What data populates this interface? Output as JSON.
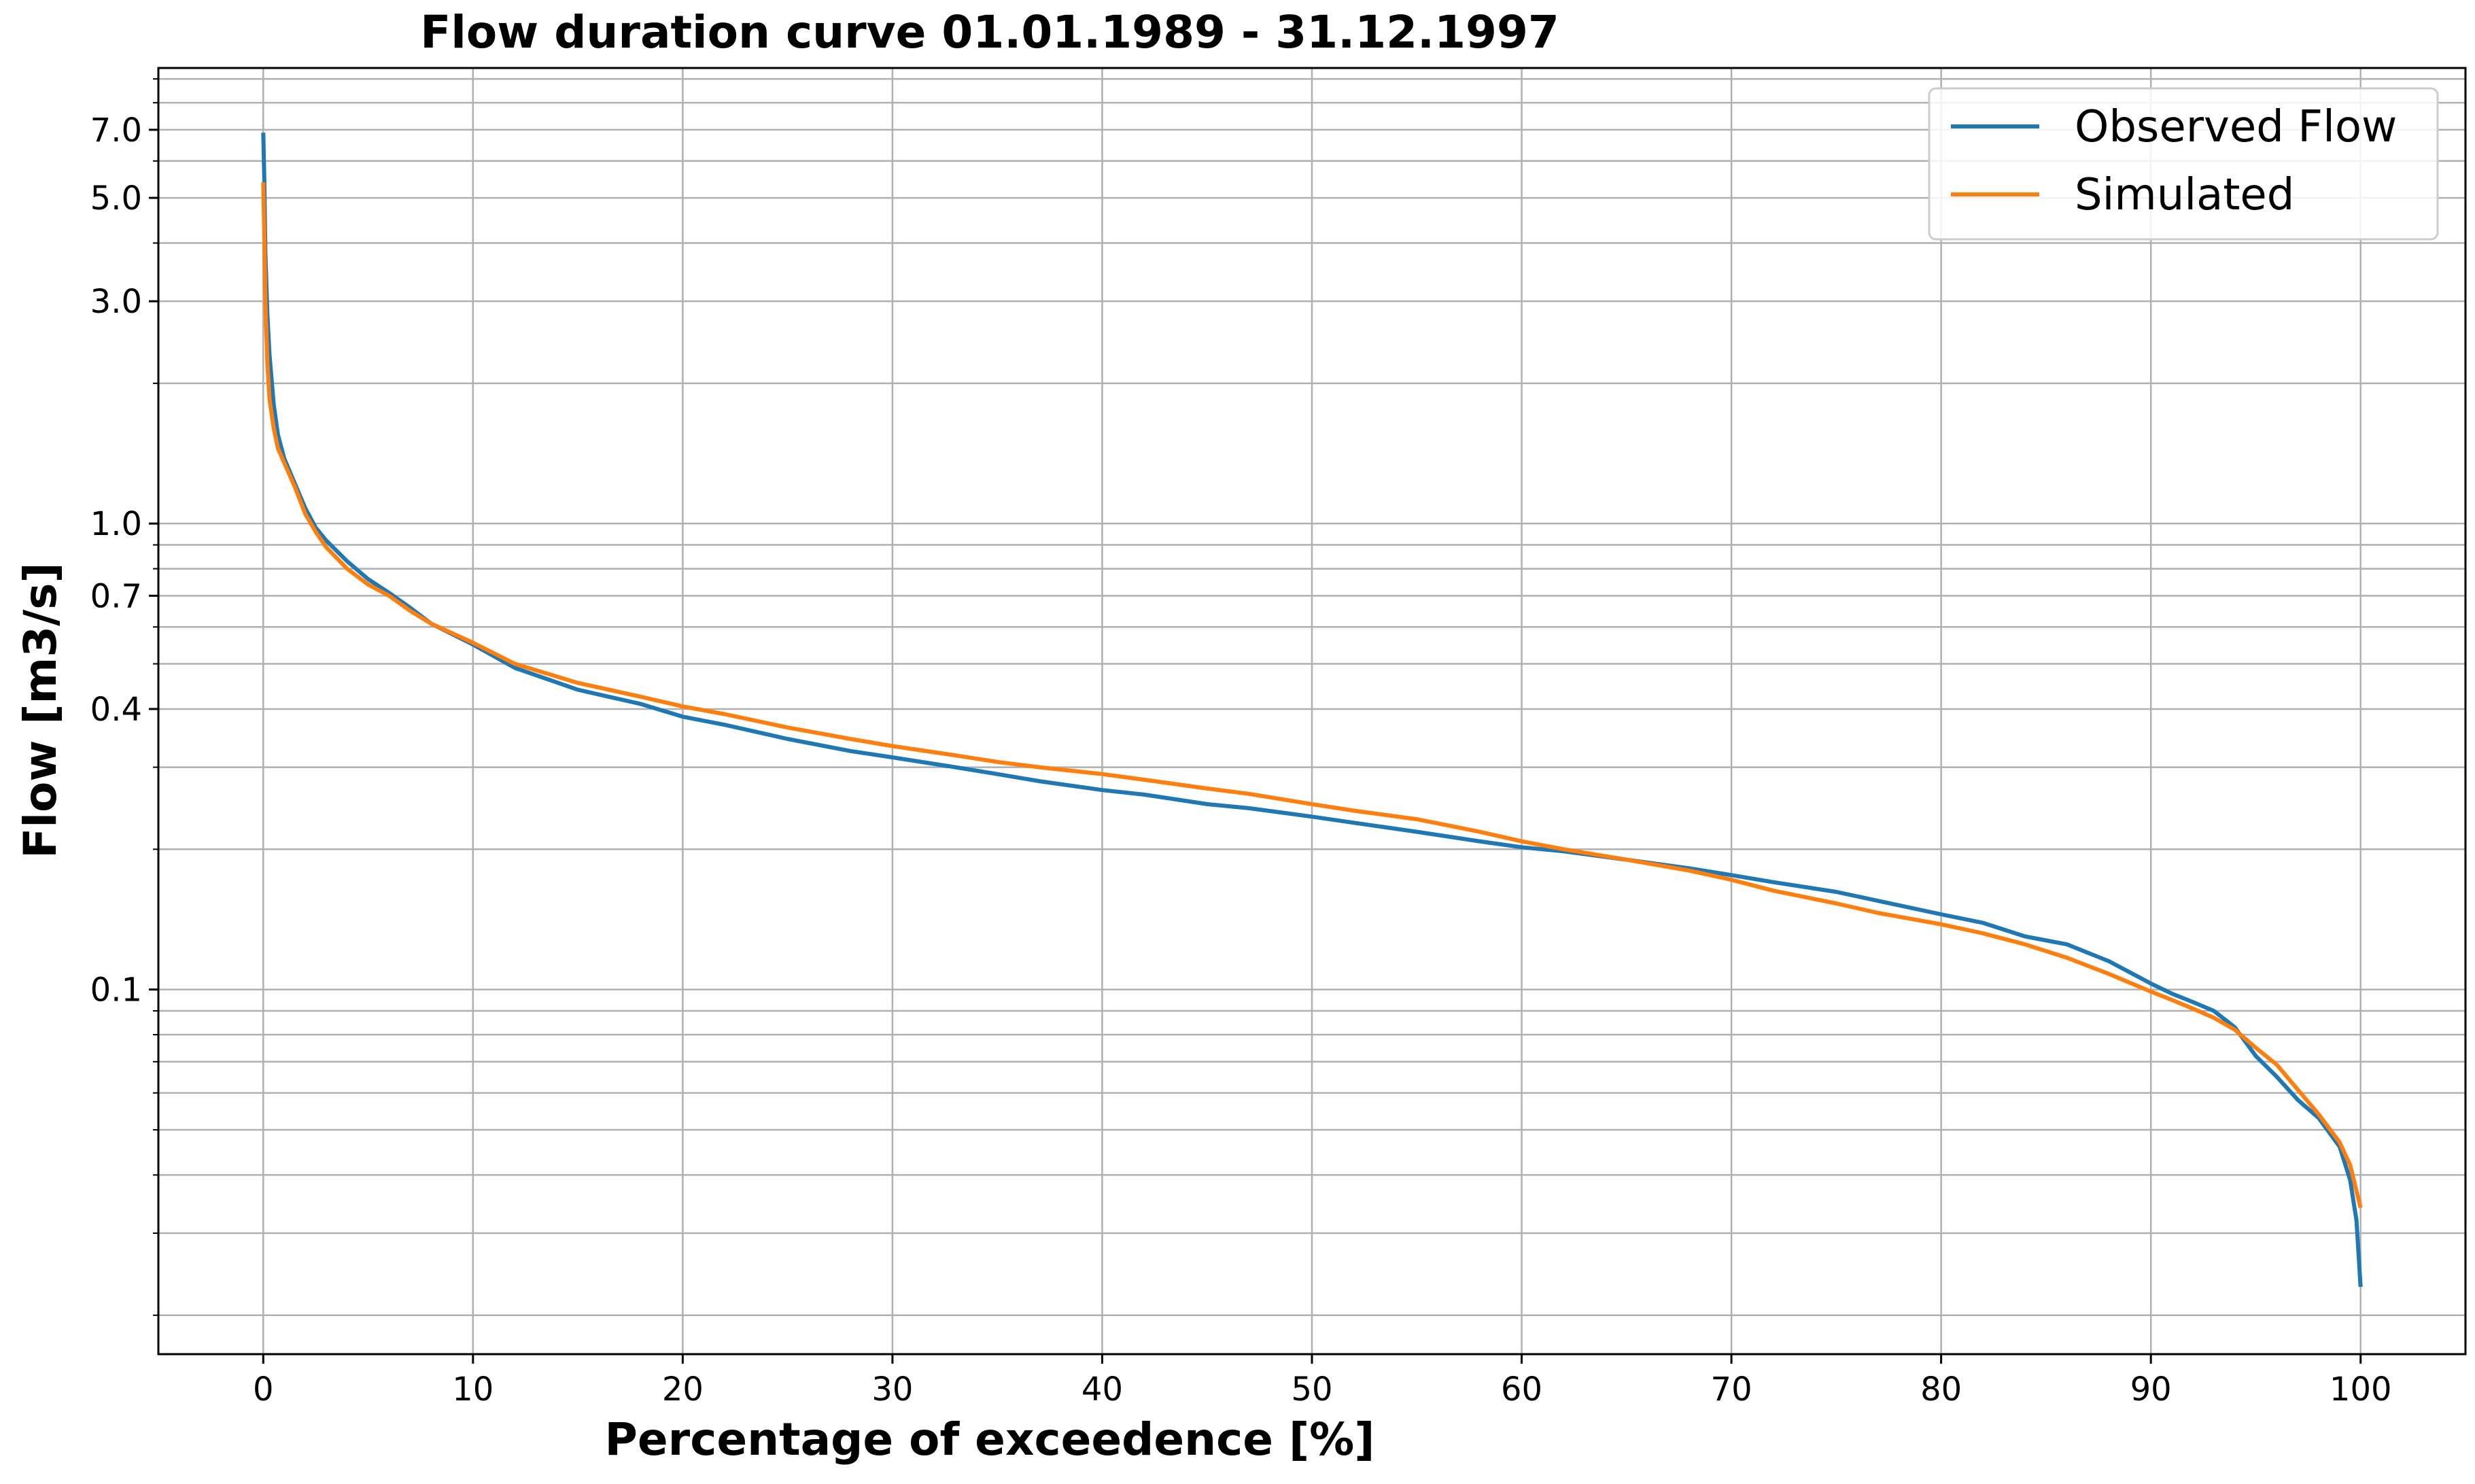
{
  "chart_data": {
    "type": "line",
    "title": "Flow duration curve 01.01.1989 - 31.12.1997",
    "xlabel": "Percentage of exceedence [%]",
    "ylabel": "Flow [m3/s]",
    "yscale": "log",
    "xlim": [
      -5,
      105
    ],
    "ylim": [
      0.0165,
      9.5
    ],
    "xticks": [
      0,
      10,
      20,
      30,
      40,
      50,
      60,
      70,
      80,
      90,
      100
    ],
    "xtick_labels": [
      "0",
      "10",
      "20",
      "30",
      "40",
      "50",
      "60",
      "70",
      "80",
      "90",
      "100"
    ],
    "yticks": [
      7.0,
      5.0,
      3.0,
      1.0,
      0.7,
      0.4,
      0.1
    ],
    "ytick_labels": [
      "7.0",
      "5.0",
      "3.0",
      "1.0",
      "0.7",
      "0.4",
      "0.1"
    ],
    "minor_y_gridlines": [
      9.0,
      8.0,
      6.0,
      4.0,
      2.0,
      0.9,
      0.8,
      0.6,
      0.5,
      0.3,
      0.2,
      0.09,
      0.08,
      0.07,
      0.06,
      0.05,
      0.04,
      0.03,
      0.02
    ],
    "grid": true,
    "legend_position": "top-right",
    "series": [
      {
        "name": "Observed Flow",
        "color": "#1f77b4",
        "x": [
          0,
          0.05,
          0.1,
          0.2,
          0.3,
          0.5,
          0.7,
          1,
          1.5,
          2,
          2.5,
          3,
          4,
          5,
          6,
          7,
          8,
          10,
          12,
          15,
          18,
          20,
          22,
          25,
          28,
          30,
          33,
          35,
          37,
          40,
          42,
          45,
          47,
          50,
          52,
          55,
          58,
          60,
          62,
          65,
          68,
          70,
          72,
          75,
          77,
          80,
          82,
          84,
          86,
          88,
          90,
          91,
          92,
          93,
          94,
          95,
          96,
          97,
          98,
          99,
          99.5,
          99.8,
          100
        ],
        "values": [
          6.9,
          5.5,
          3.8,
          2.8,
          2.3,
          1.8,
          1.55,
          1.38,
          1.22,
          1.08,
          0.98,
          0.92,
          0.83,
          0.76,
          0.71,
          0.66,
          0.61,
          0.55,
          0.49,
          0.44,
          0.41,
          0.385,
          0.37,
          0.345,
          0.325,
          0.315,
          0.3,
          0.29,
          0.28,
          0.268,
          0.262,
          0.25,
          0.245,
          0.235,
          0.228,
          0.218,
          0.208,
          0.202,
          0.198,
          0.19,
          0.182,
          0.176,
          0.17,
          0.162,
          0.155,
          0.145,
          0.139,
          0.13,
          0.125,
          0.115,
          0.103,
          0.098,
          0.094,
          0.09,
          0.083,
          0.072,
          0.065,
          0.058,
          0.053,
          0.046,
          0.039,
          0.032,
          0.023
        ]
      },
      {
        "name": "Simulated",
        "color": "#ff7f0e",
        "x": [
          0,
          0.05,
          0.1,
          0.2,
          0.3,
          0.5,
          0.7,
          1,
          1.5,
          2,
          2.5,
          3,
          4,
          5,
          6,
          7,
          8,
          10,
          12,
          15,
          18,
          20,
          22,
          25,
          28,
          30,
          33,
          35,
          37,
          40,
          42,
          45,
          47,
          50,
          52,
          55,
          58,
          60,
          62,
          65,
          68,
          70,
          72,
          75,
          77,
          80,
          82,
          84,
          86,
          88,
          90,
          91,
          92,
          93,
          94,
          95,
          96,
          97,
          98,
          99,
          99.5,
          100
        ],
        "values": [
          5.4,
          4.2,
          3.0,
          2.2,
          1.85,
          1.6,
          1.45,
          1.35,
          1.2,
          1.05,
          0.96,
          0.89,
          0.8,
          0.74,
          0.7,
          0.65,
          0.61,
          0.555,
          0.5,
          0.455,
          0.425,
          0.405,
          0.39,
          0.365,
          0.345,
          0.333,
          0.318,
          0.308,
          0.3,
          0.29,
          0.282,
          0.27,
          0.263,
          0.25,
          0.242,
          0.232,
          0.218,
          0.208,
          0.2,
          0.19,
          0.18,
          0.172,
          0.163,
          0.153,
          0.146,
          0.138,
          0.132,
          0.125,
          0.117,
          0.108,
          0.099,
          0.095,
          0.091,
          0.087,
          0.082,
          0.075,
          0.069,
          0.061,
          0.054,
          0.047,
          0.042,
          0.034
        ]
      }
    ]
  }
}
